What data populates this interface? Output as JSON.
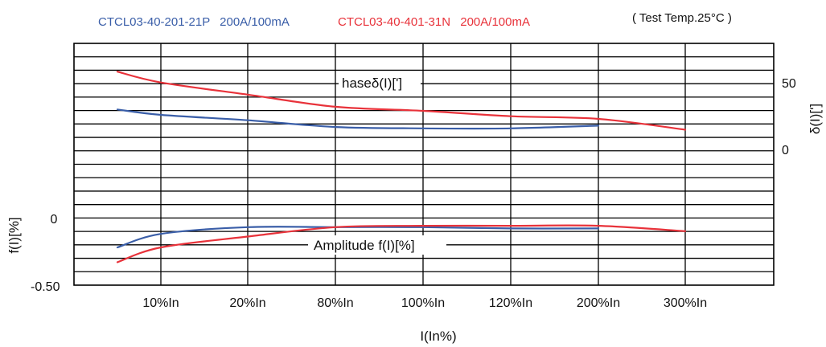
{
  "legend": {
    "series_a_part": "CTCL03-40-201-21P",
    "series_a_rating": "200A/100mA",
    "series_b_part": "CTCL03-40-401-31N",
    "series_b_rating": "200A/100mA",
    "test_note": "( Test  Temp.25°C )"
  },
  "colors": {
    "series_a": "#3a5ea8",
    "series_b": "#e8323a"
  },
  "chart_data": {
    "type": "line",
    "xlabel": "I(In%)",
    "categories": [
      "10%In",
      "20%In",
      "80%In",
      "100%In",
      "120%In",
      "200%In",
      "300%In"
    ],
    "phase": {
      "label": "haseδ(I)[']",
      "axis_label": "δ(I)[']",
      "ticks": [
        "50",
        "0"
      ],
      "series": [
        {
          "name": "CTCL03-40-201-21P",
          "x": [
            5,
            10,
            20,
            80,
            100,
            120,
            200
          ],
          "y": [
            29,
            25,
            21,
            16,
            15,
            15,
            17
          ]
        },
        {
          "name": "CTCL03-40-401-31N",
          "x": [
            5,
            10,
            20,
            80,
            100,
            120,
            200,
            300
          ],
          "y": [
            57,
            49,
            40,
            31,
            28,
            24,
            22,
            14
          ]
        }
      ]
    },
    "amplitude": {
      "label": "Amplitude f(I)[%]",
      "axis_label": "f(I)[%]",
      "ticks": [
        "0",
        "-0.50"
      ],
      "series": [
        {
          "name": "CTCL03-40-201-21P",
          "x": [
            5,
            10,
            20,
            80,
            100,
            120,
            200
          ],
          "y": [
            -0.22,
            -0.12,
            -0.07,
            -0.07,
            -0.07,
            -0.08,
            -0.08
          ]
        },
        {
          "name": "CTCL03-40-401-31N",
          "x": [
            5,
            10,
            20,
            80,
            100,
            120,
            200,
            300
          ],
          "y": [
            -0.33,
            -0.22,
            -0.14,
            -0.07,
            -0.06,
            -0.06,
            -0.06,
            -0.1
          ]
        }
      ]
    }
  }
}
